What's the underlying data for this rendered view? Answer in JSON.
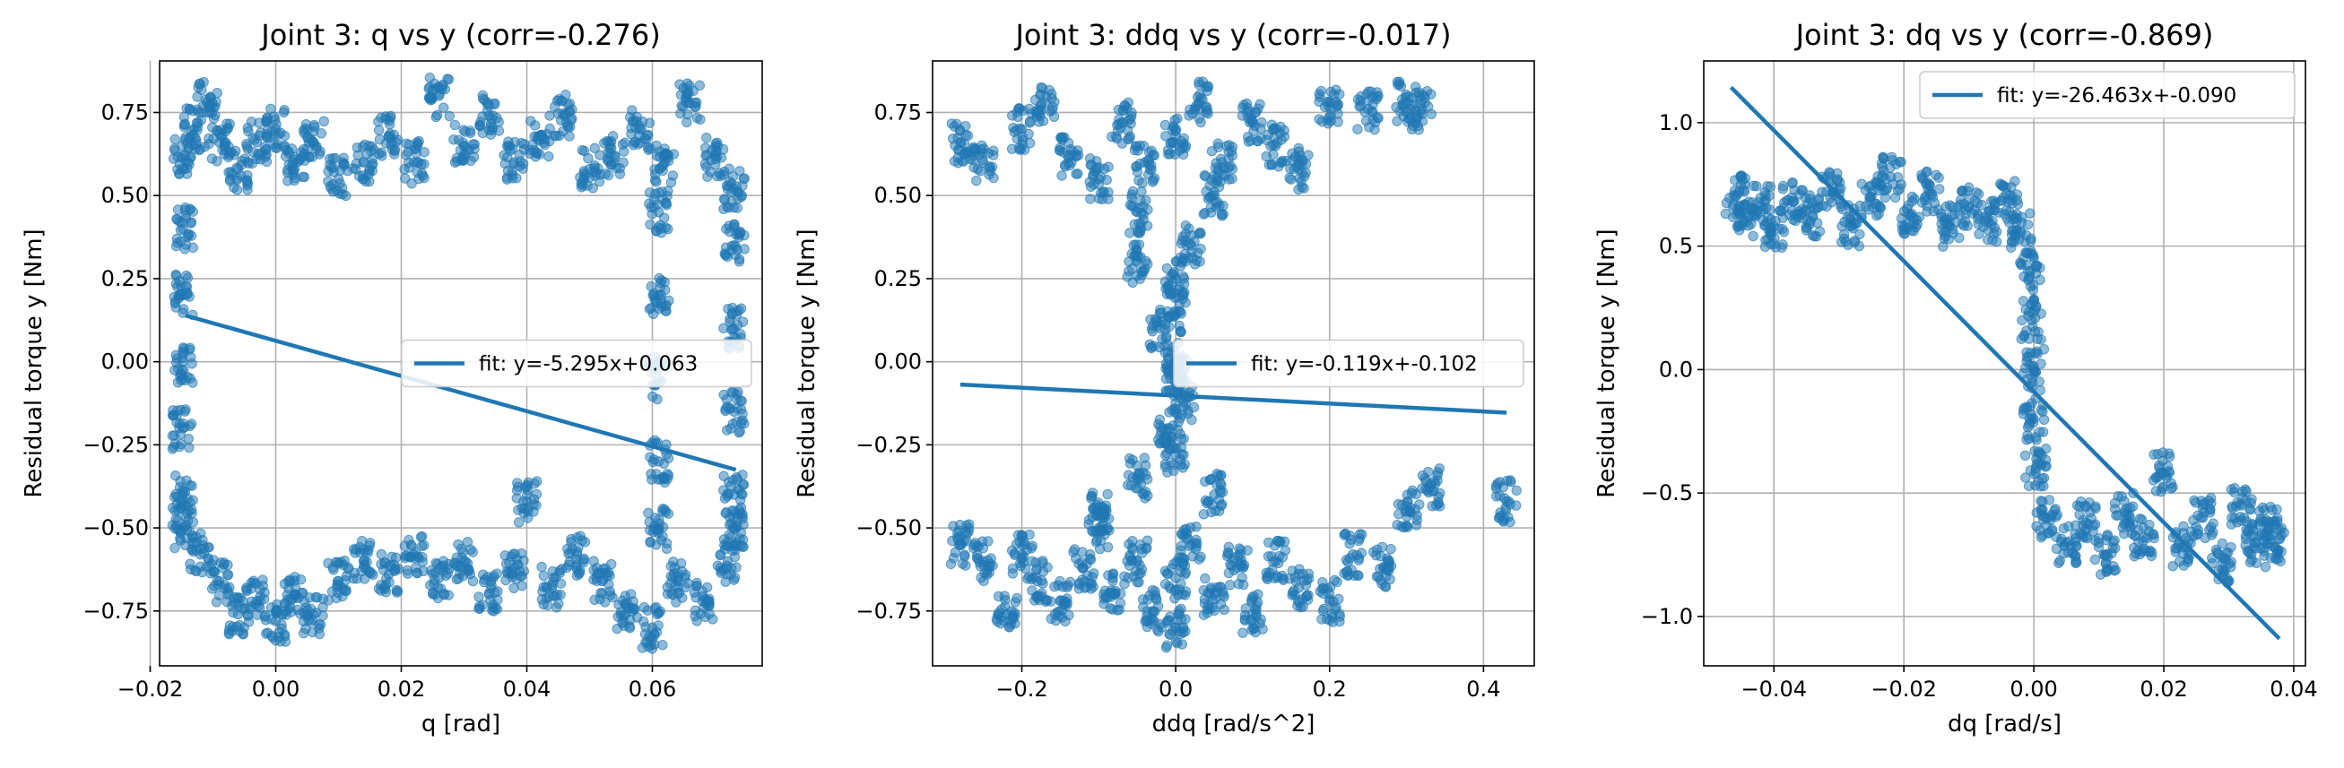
{
  "chart_data": [
    {
      "type": "scatter",
      "title": "Joint 3: q vs y (corr=-0.276)",
      "xlabel": "q [rad]",
      "ylabel": "Residual torque y [Nm]",
      "xlim": [
        -0.0185,
        0.0775
      ],
      "ylim": [
        -0.915,
        0.905
      ],
      "xticks": [
        -0.02,
        0.0,
        0.02,
        0.04,
        0.06
      ],
      "xticklabels": [
        "−0.02",
        "0.00",
        "0.02",
        "0.04",
        "0.06"
      ],
      "yticks": [
        -0.75,
        -0.5,
        -0.25,
        0.0,
        0.25,
        0.5,
        0.75
      ],
      "yticklabels": [
        "−0.75",
        "−0.50",
        "−0.25",
        "0.00",
        "0.25",
        "0.50",
        "0.75"
      ],
      "grid": true,
      "legend": "center right",
      "legend_label": "fit: y=-5.295x+0.063",
      "fit": {
        "slope": -5.295,
        "intercept": 0.063,
        "x": [
          -0.0144,
          0.0733
        ]
      },
      "series": [
        {
          "values": [
            {
              "x": -0.0148,
              "y": 0.62
            },
            {
              "x": -0.013,
              "y": 0.7
            },
            {
              "x": -0.011,
              "y": 0.78
            },
            {
              "x": -0.009,
              "y": 0.66
            },
            {
              "x": -0.006,
              "y": 0.58
            },
            {
              "x": -0.003,
              "y": 0.66
            },
            {
              "x": 0.0,
              "y": 0.7
            },
            {
              "x": 0.003,
              "y": 0.58
            },
            {
              "x": 0.006,
              "y": 0.66
            },
            {
              "x": 0.01,
              "y": 0.55
            },
            {
              "x": 0.014,
              "y": 0.6
            },
            {
              "x": 0.018,
              "y": 0.68
            },
            {
              "x": 0.022,
              "y": 0.6
            },
            {
              "x": 0.026,
              "y": 0.8
            },
            {
              "x": 0.03,
              "y": 0.65
            },
            {
              "x": 0.034,
              "y": 0.74
            },
            {
              "x": 0.038,
              "y": 0.6
            },
            {
              "x": 0.042,
              "y": 0.68
            },
            {
              "x": 0.046,
              "y": 0.74
            },
            {
              "x": 0.05,
              "y": 0.58
            },
            {
              "x": 0.054,
              "y": 0.62
            },
            {
              "x": 0.058,
              "y": 0.7
            },
            {
              "x": 0.062,
              "y": 0.6
            },
            {
              "x": 0.066,
              "y": 0.78
            },
            {
              "x": 0.07,
              "y": 0.62
            },
            {
              "x": 0.073,
              "y": 0.52
            },
            {
              "x": -0.0148,
              "y": -0.5
            },
            {
              "x": -0.012,
              "y": -0.58
            },
            {
              "x": -0.009,
              "y": -0.66
            },
            {
              "x": -0.006,
              "y": -0.76
            },
            {
              "x": -0.003,
              "y": -0.72
            },
            {
              "x": 0.0,
              "y": -0.78
            },
            {
              "x": 0.003,
              "y": -0.7
            },
            {
              "x": 0.006,
              "y": -0.76
            },
            {
              "x": 0.01,
              "y": -0.66
            },
            {
              "x": 0.014,
              "y": -0.6
            },
            {
              "x": 0.018,
              "y": -0.64
            },
            {
              "x": 0.022,
              "y": -0.58
            },
            {
              "x": 0.026,
              "y": -0.65
            },
            {
              "x": 0.03,
              "y": -0.6
            },
            {
              "x": 0.034,
              "y": -0.7
            },
            {
              "x": 0.038,
              "y": -0.62
            },
            {
              "x": 0.04,
              "y": -0.42
            },
            {
              "x": 0.044,
              "y": -0.68
            },
            {
              "x": 0.048,
              "y": -0.58
            },
            {
              "x": 0.052,
              "y": -0.66
            },
            {
              "x": 0.056,
              "y": -0.74
            },
            {
              "x": 0.06,
              "y": -0.8
            },
            {
              "x": 0.064,
              "y": -0.66
            },
            {
              "x": 0.068,
              "y": -0.72
            },
            {
              "x": 0.072,
              "y": -0.6
            },
            {
              "x": 0.073,
              "y": -0.5
            },
            {
              "x": -0.0148,
              "y": 0.4
            },
            {
              "x": -0.0148,
              "y": 0.2
            },
            {
              "x": -0.0148,
              "y": 0.0
            },
            {
              "x": -0.0148,
              "y": -0.2
            },
            {
              "x": -0.0148,
              "y": -0.4
            },
            {
              "x": 0.061,
              "y": 0.45
            },
            {
              "x": 0.061,
              "y": 0.2
            },
            {
              "x": 0.061,
              "y": -0.05
            },
            {
              "x": 0.061,
              "y": -0.3
            },
            {
              "x": 0.061,
              "y": -0.5
            },
            {
              "x": 0.073,
              "y": 0.35
            },
            {
              "x": 0.073,
              "y": 0.1
            },
            {
              "x": 0.073,
              "y": -0.15
            },
            {
              "x": 0.073,
              "y": -0.4
            }
          ]
        }
      ]
    },
    {
      "type": "scatter",
      "title": "Joint 3: ddq vs y (corr=-0.017)",
      "xlabel": "ddq [rad/s^2]",
      "ylabel": "Residual torque y [Nm]",
      "xlim": [
        -0.316,
        0.466
      ],
      "ylim": [
        -0.915,
        0.905
      ],
      "xticks": [
        -0.2,
        0.0,
        0.2,
        0.4
      ],
      "xticklabels": [
        "−0.2",
        "0.0",
        "0.2",
        "0.4"
      ],
      "yticks": [
        -0.75,
        -0.5,
        -0.25,
        0.0,
        0.25,
        0.5,
        0.75
      ],
      "yticklabels": [
        "−0.75",
        "−0.50",
        "−0.25",
        "0.00",
        "0.25",
        "0.50",
        "0.75"
      ],
      "grid": true,
      "legend": "center right",
      "legend_label": "fit: y=-0.119x+-0.102",
      "fit": {
        "slope": -0.119,
        "intercept": -0.102,
        "x": [
          -0.28,
          0.43
        ]
      },
      "series": [
        {
          "values": [
            {
              "x": -0.28,
              "y": -0.55
            },
            {
              "x": -0.25,
              "y": -0.6
            },
            {
              "x": -0.22,
              "y": -0.76
            },
            {
              "x": -0.2,
              "y": -0.58
            },
            {
              "x": -0.18,
              "y": -0.66
            },
            {
              "x": -0.15,
              "y": -0.72
            },
            {
              "x": -0.12,
              "y": -0.62
            },
            {
              "x": -0.1,
              "y": -0.5
            },
            {
              "x": -0.08,
              "y": -0.7
            },
            {
              "x": -0.05,
              "y": -0.6
            },
            {
              "x": -0.03,
              "y": -0.75
            },
            {
              "x": 0.0,
              "y": -0.65
            },
            {
              "x": 0.02,
              "y": -0.55
            },
            {
              "x": 0.05,
              "y": -0.7
            },
            {
              "x": 0.08,
              "y": -0.62
            },
            {
              "x": 0.1,
              "y": -0.76
            },
            {
              "x": 0.13,
              "y": -0.6
            },
            {
              "x": 0.16,
              "y": -0.68
            },
            {
              "x": 0.2,
              "y": -0.72
            },
            {
              "x": 0.23,
              "y": -0.58
            },
            {
              "x": 0.27,
              "y": -0.62
            },
            {
              "x": 0.3,
              "y": -0.45
            },
            {
              "x": 0.33,
              "y": -0.38
            },
            {
              "x": 0.43,
              "y": -0.42
            },
            {
              "x": -0.05,
              "y": -0.35
            },
            {
              "x": 0.05,
              "y": -0.4
            },
            {
              "x": -0.1,
              "y": -0.45
            },
            {
              "x": 0.0,
              "y": -0.8
            },
            {
              "x": -0.28,
              "y": 0.66
            },
            {
              "x": -0.25,
              "y": 0.6
            },
            {
              "x": -0.2,
              "y": 0.7
            },
            {
              "x": -0.17,
              "y": 0.78
            },
            {
              "x": -0.14,
              "y": 0.62
            },
            {
              "x": -0.1,
              "y": 0.55
            },
            {
              "x": -0.07,
              "y": 0.72
            },
            {
              "x": -0.04,
              "y": 0.6
            },
            {
              "x": 0.0,
              "y": 0.68
            },
            {
              "x": 0.03,
              "y": 0.78
            },
            {
              "x": 0.06,
              "y": 0.6
            },
            {
              "x": 0.1,
              "y": 0.72
            },
            {
              "x": 0.13,
              "y": 0.65
            },
            {
              "x": 0.16,
              "y": 0.58
            },
            {
              "x": 0.2,
              "y": 0.78
            },
            {
              "x": 0.25,
              "y": 0.76
            },
            {
              "x": 0.3,
              "y": 0.78
            },
            {
              "x": 0.32,
              "y": 0.76
            },
            {
              "x": -0.05,
              "y": 0.45
            },
            {
              "x": 0.05,
              "y": 0.5
            },
            {
              "x": -0.05,
              "y": 0.3
            },
            {
              "x": 0.0,
              "y": 0.25
            },
            {
              "x": 0.0,
              "y": 0.15
            },
            {
              "x": -0.02,
              "y": 0.1
            },
            {
              "x": 0.0,
              "y": 0.0
            },
            {
              "x": 0.0,
              "y": -0.05
            },
            {
              "x": 0.01,
              "y": -0.12
            },
            {
              "x": -0.01,
              "y": -0.2
            },
            {
              "x": 0.0,
              "y": -0.28
            },
            {
              "x": 0.02,
              "y": 0.35
            }
          ]
        }
      ]
    },
    {
      "type": "scatter",
      "title": "Joint 3: dq vs y (corr=-0.869)",
      "xlabel": "dq [rad/s]",
      "ylabel": "Residual torque y [Nm]",
      "xlim": [
        -0.0508,
        0.0418
      ],
      "ylim": [
        -1.2,
        1.25
      ],
      "xticks": [
        -0.04,
        -0.02,
        0.0,
        0.02,
        0.04
      ],
      "xticklabels": [
        "−0.04",
        "−0.02",
        "0.00",
        "0.02",
        "0.04"
      ],
      "yticks": [
        -1.0,
        -0.5,
        0.0,
        0.5,
        1.0
      ],
      "yticklabels": [
        "−1.0",
        "−0.5",
        "0.0",
        "0.5",
        "1.0"
      ],
      "grid": true,
      "legend": "top right",
      "legend_label": "fit: y=-26.463x+-0.090",
      "fit": {
        "slope": -26.463,
        "intercept": -0.09,
        "x": [
          -0.0466,
          0.0378
        ]
      },
      "series": [
        {
          "values": [
            {
              "x": -0.046,
              "y": 0.7
            },
            {
              "x": -0.044,
              "y": 0.62
            },
            {
              "x": -0.042,
              "y": 0.66
            },
            {
              "x": -0.04,
              "y": 0.58
            },
            {
              "x": -0.037,
              "y": 0.68
            },
            {
              "x": -0.034,
              "y": 0.62
            },
            {
              "x": -0.031,
              "y": 0.72
            },
            {
              "x": -0.028,
              "y": 0.58
            },
            {
              "x": -0.025,
              "y": 0.7
            },
            {
              "x": -0.022,
              "y": 0.78
            },
            {
              "x": -0.019,
              "y": 0.62
            },
            {
              "x": -0.016,
              "y": 0.72
            },
            {
              "x": -0.013,
              "y": 0.58
            },
            {
              "x": -0.01,
              "y": 0.66
            },
            {
              "x": -0.007,
              "y": 0.6
            },
            {
              "x": -0.004,
              "y": 0.68
            },
            {
              "x": -0.002,
              "y": 0.56
            },
            {
              "x": -0.0005,
              "y": 0.4
            },
            {
              "x": -0.0003,
              "y": 0.2
            },
            {
              "x": 0.0,
              "y": 0.0
            },
            {
              "x": 0.0,
              "y": -0.2
            },
            {
              "x": 0.0003,
              "y": -0.4
            },
            {
              "x": 0.002,
              "y": -0.6
            },
            {
              "x": 0.005,
              "y": -0.7
            },
            {
              "x": 0.008,
              "y": -0.62
            },
            {
              "x": 0.011,
              "y": -0.75
            },
            {
              "x": 0.014,
              "y": -0.58
            },
            {
              "x": 0.017,
              "y": -0.68
            },
            {
              "x": 0.02,
              "y": -0.42
            },
            {
              "x": 0.023,
              "y": -0.72
            },
            {
              "x": 0.026,
              "y": -0.6
            },
            {
              "x": 0.029,
              "y": -0.78
            },
            {
              "x": 0.032,
              "y": -0.55
            },
            {
              "x": 0.034,
              "y": -0.7
            },
            {
              "x": 0.036,
              "y": -0.64
            },
            {
              "x": 0.037,
              "y": -0.72
            }
          ]
        }
      ]
    }
  ]
}
